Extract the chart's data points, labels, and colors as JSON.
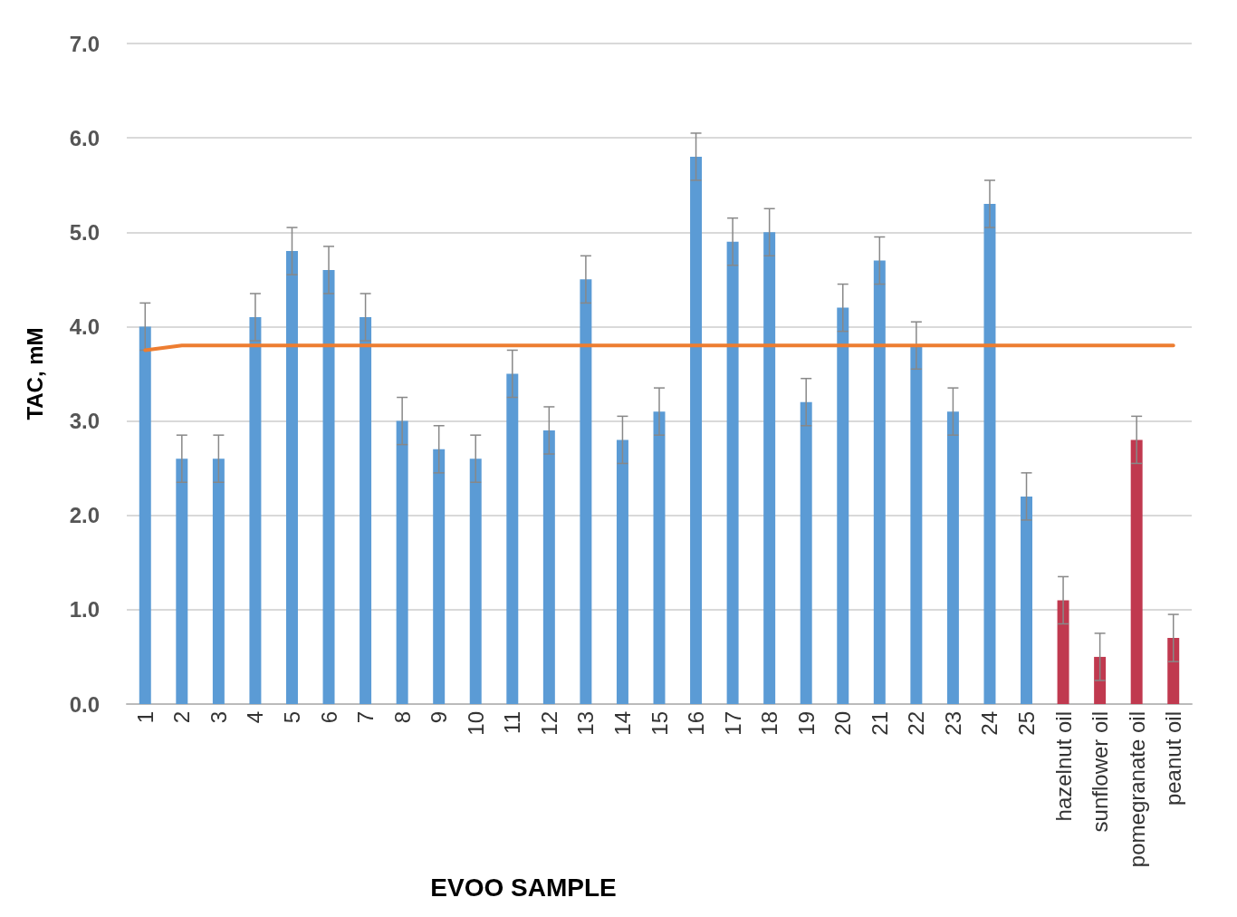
{
  "chart_data": {
    "type": "bar",
    "xlabel": "EVOO SAMPLE",
    "ylabel": "TAC, mM",
    "categories": [
      "1",
      "2",
      "3",
      "4",
      "5",
      "6",
      "7",
      "8",
      "9",
      "10",
      "11",
      "12",
      "13",
      "14",
      "15",
      "16",
      "17",
      "18",
      "19",
      "20",
      "21",
      "22",
      "23",
      "24",
      "25",
      "hazelnut oil",
      "sunflower oil",
      "pomegranate oil",
      "peanut oil"
    ],
    "series": [
      {
        "values": [
          4.0,
          2.6,
          2.6,
          4.1,
          4.8,
          4.6,
          4.1,
          3.0,
          2.7,
          2.6,
          3.5,
          2.9,
          4.5,
          2.8,
          3.1,
          5.8,
          4.9,
          5.0,
          3.2,
          4.2,
          4.7,
          3.8,
          3.1,
          5.3,
          2.2,
          1.1,
          0.5,
          2.8,
          0.7
        ],
        "colors": [
          "#5b9bd5",
          "#5b9bd5",
          "#5b9bd5",
          "#5b9bd5",
          "#5b9bd5",
          "#5b9bd5",
          "#5b9bd5",
          "#5b9bd5",
          "#5b9bd5",
          "#5b9bd5",
          "#5b9bd5",
          "#5b9bd5",
          "#5b9bd5",
          "#5b9bd5",
          "#5b9bd5",
          "#5b9bd5",
          "#5b9bd5",
          "#5b9bd5",
          "#5b9bd5",
          "#5b9bd5",
          "#5b9bd5",
          "#5b9bd5",
          "#5b9bd5",
          "#5b9bd5",
          "#5b9bd5",
          "#c0394f",
          "#c0394f",
          "#c0394f",
          "#c0394f"
        ],
        "errors": [
          0.25,
          0.25,
          0.25,
          0.25,
          0.25,
          0.25,
          0.25,
          0.25,
          0.25,
          0.25,
          0.25,
          0.25,
          0.25,
          0.25,
          0.25,
          0.25,
          0.25,
          0.25,
          0.25,
          0.25,
          0.25,
          0.25,
          0.25,
          0.25,
          0.25,
          0.25,
          0.25,
          0.25,
          0.25
        ]
      },
      {
        "type": "line",
        "color": "#ed7d31",
        "marker": "none",
        "line_style": "solid",
        "values": [
          3.75,
          3.8,
          3.8,
          3.8,
          3.8,
          3.8,
          3.8,
          3.8,
          3.8,
          3.8,
          3.8,
          3.8,
          3.8,
          3.8,
          3.8,
          3.8,
          3.8,
          3.8,
          3.8,
          3.8,
          3.8,
          3.8,
          3.8,
          3.8,
          3.8,
          3.8,
          3.8,
          3.8,
          3.8
        ]
      }
    ],
    "ylim": [
      0,
      7
    ],
    "yticks": [
      {
        "value": 0,
        "label": "0.0"
      },
      {
        "value": 1,
        "label": "1.0"
      },
      {
        "value": 2,
        "label": "2.0"
      },
      {
        "value": 3,
        "label": "3.0"
      },
      {
        "value": 4,
        "label": "4.0"
      },
      {
        "value": 5,
        "label": "5.0"
      },
      {
        "value": 6,
        "label": "6.0"
      },
      {
        "value": 7,
        "label": "7.0"
      }
    ],
    "grid": "y"
  }
}
